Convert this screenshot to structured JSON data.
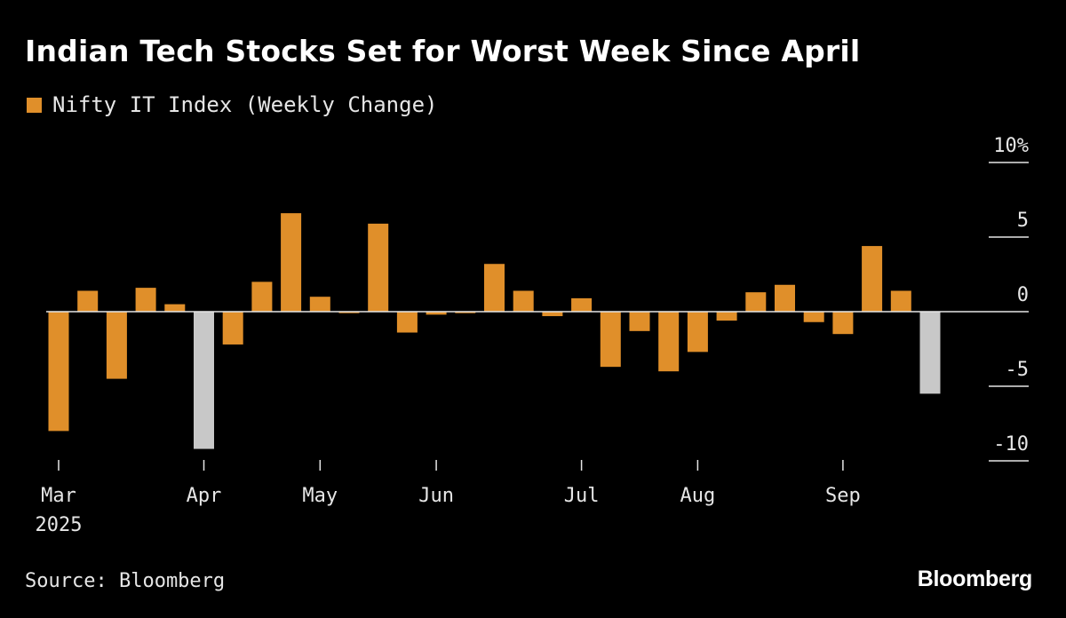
{
  "title": "Indian Tech Stocks Set for Worst Week Since April",
  "legend": {
    "label": "Nifty IT Index (Weekly Change)",
    "color": "#E08F2A"
  },
  "source": "Source: Bloomberg",
  "brand": "Bloomberg",
  "colors": {
    "positive_bar": "#E08F2A",
    "highlight_bar": "#C8C8C8",
    "axis": "#E6E6E6"
  },
  "chart_data": {
    "type": "bar",
    "title": "Indian Tech Stocks Set for Worst Week Since April",
    "series": [
      {
        "name": "Nifty IT Index (Weekly Change)",
        "values": [
          -8.0,
          1.4,
          -4.5,
          1.6,
          0.5,
          -9.2,
          -2.2,
          2.0,
          6.6,
          1.0,
          -0.1,
          5.9,
          -1.4,
          -0.2,
          -0.1,
          3.2,
          1.4,
          -0.3,
          0.9,
          -3.7,
          -1.3,
          -4.0,
          -2.7,
          -0.6,
          1.3,
          1.8,
          -0.7,
          -1.5,
          4.4,
          1.4,
          -5.5
        ]
      }
    ],
    "highlighted_indices": [
      5,
      30
    ],
    "x_ticks": [
      {
        "index": 0,
        "label": "Mar",
        "sublabel": "2025"
      },
      {
        "index": 5,
        "label": "Apr"
      },
      {
        "index": 9,
        "label": "May"
      },
      {
        "index": 13,
        "label": "Jun"
      },
      {
        "index": 18,
        "label": "Jul"
      },
      {
        "index": 22,
        "label": "Aug"
      },
      {
        "index": 27,
        "label": "Sep"
      }
    ],
    "y_ticks": [
      {
        "value": 10,
        "label": "10%"
      },
      {
        "value": 5,
        "label": "5"
      },
      {
        "value": 0,
        "label": "0"
      },
      {
        "value": -5,
        "label": "-5"
      },
      {
        "value": -10,
        "label": "-10"
      }
    ],
    "ylim": [
      -10,
      10
    ],
    "xlabel": "",
    "ylabel": ""
  }
}
